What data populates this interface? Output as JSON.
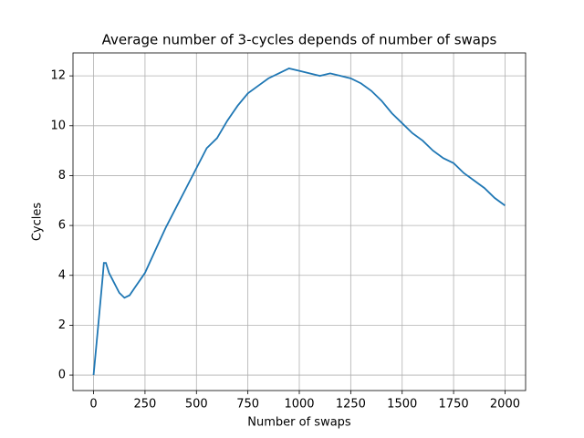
{
  "chart_data": {
    "type": "line",
    "title": "Average number of 3-cycles depends of number of swaps",
    "x_label": "Number of swaps",
    "y_label": "Cycles",
    "x": [
      0,
      25,
      45,
      50,
      60,
      75,
      100,
      125,
      150,
      175,
      200,
      250,
      300,
      350,
      400,
      450,
      500,
      550,
      600,
      650,
      700,
      750,
      800,
      850,
      900,
      950,
      1000,
      1050,
      1100,
      1150,
      1200,
      1250,
      1300,
      1350,
      1400,
      1450,
      1500,
      1550,
      1600,
      1650,
      1700,
      1750,
      1800,
      1850,
      1900,
      1950,
      2000
    ],
    "series": [
      {
        "name": "Cycles",
        "color": "#1f77b4",
        "values": [
          0,
          2.2,
          4.0,
          4.5,
          4.5,
          4.1,
          3.7,
          3.3,
          3.1,
          3.2,
          3.5,
          4.1,
          5.0,
          5.9,
          6.7,
          7.5,
          8.3,
          9.1,
          9.5,
          10.2,
          10.8,
          11.3,
          11.6,
          11.9,
          12.1,
          12.3,
          12.2,
          12.1,
          12.0,
          12.1,
          12.0,
          11.9,
          11.7,
          11.4,
          11.0,
          10.5,
          10.1,
          9.7,
          9.4,
          9.0,
          8.7,
          8.5,
          8.1,
          7.8,
          7.5,
          7.1,
          6.8
        ]
      }
    ],
    "xlim": [
      -100,
      2100
    ],
    "ylim": [
      -0.62,
      12.92
    ],
    "xticks": [
      0,
      250,
      500,
      750,
      1000,
      1250,
      1500,
      1750,
      2000
    ],
    "yticks": [
      0,
      2,
      4,
      6,
      8,
      10,
      12
    ],
    "grid": true
  }
}
